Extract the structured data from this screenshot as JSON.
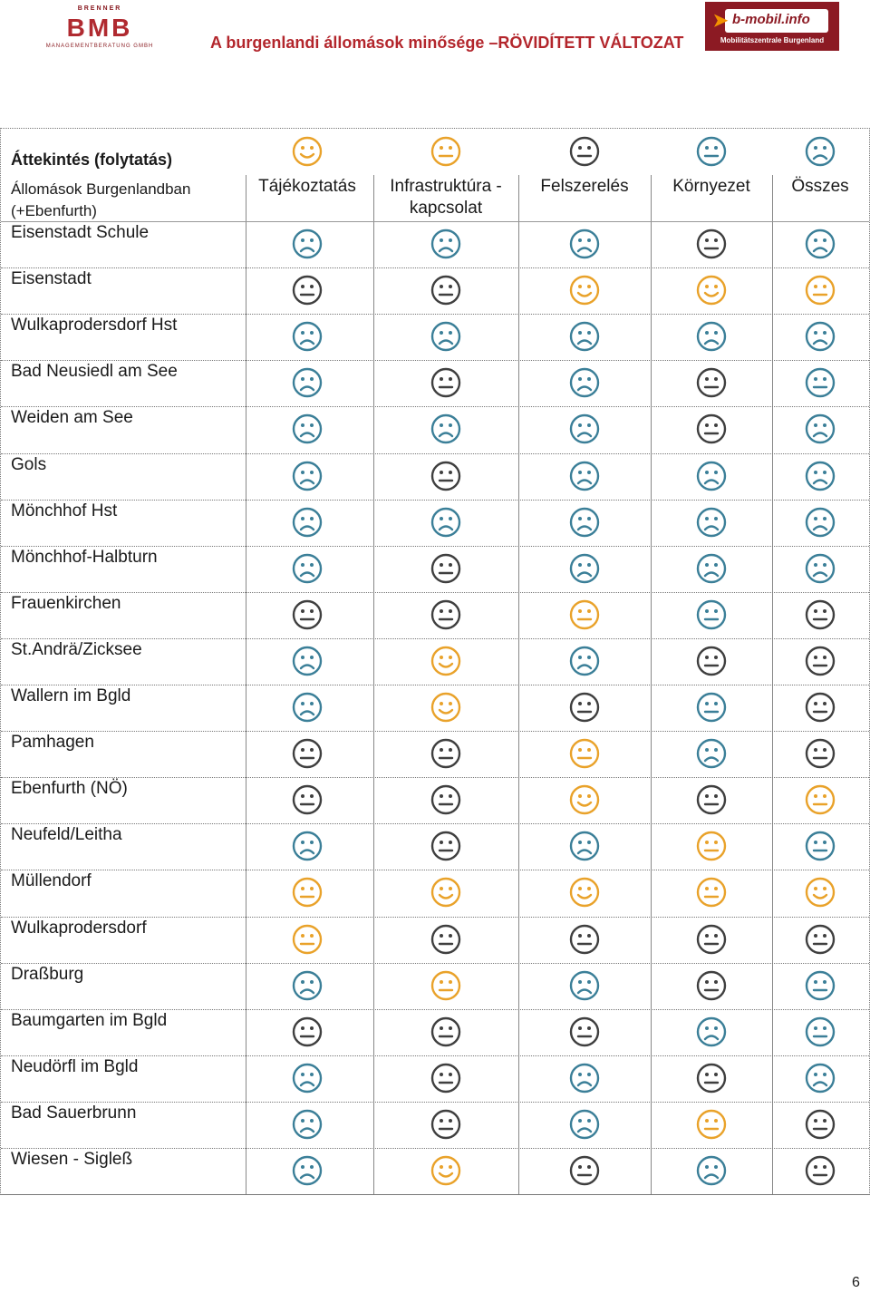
{
  "header": {
    "logo_left_top": "BRENNER",
    "logo_left_mark": "BMB",
    "logo_left_sub": "MANAGEMENTBERATUNG GMBH",
    "title": "A burgenlandi állomások minősége –RÖVIDÍTETT VÁLTOZAT",
    "logo_right_text": "b-mobil.info",
    "logo_right_caption": "Mobilitätszentrale Burgenland"
  },
  "table": {
    "heading": "Áttekintés (folytatás)",
    "stations_header": "Állomások Burgenlandban (+Ebenfurth)",
    "columns": [
      "Tájékoztatás",
      "Infrastruktúra -kapcsolat",
      "Felszerelés",
      "Környezet",
      "Összes"
    ],
    "legend": [
      {
        "mood": "happy",
        "color": "orange"
      },
      {
        "mood": "neutral",
        "color": "orange"
      },
      {
        "mood": "neutral",
        "color": "dark"
      },
      {
        "mood": "neutral",
        "color": "teal"
      },
      {
        "mood": "sad",
        "color": "teal"
      }
    ],
    "rows": [
      {
        "name": "Eisenstadt Schule",
        "ratings": [
          "sad-teal",
          "sad-teal",
          "sad-teal",
          "neutral-dark",
          "sad-teal"
        ]
      },
      {
        "name": "Eisenstadt",
        "ratings": [
          "neutral-dark",
          "neutral-dark",
          "happy-orange",
          "happy-orange",
          "neutral-orange"
        ]
      },
      {
        "name": "Wulkaprodersdorf Hst",
        "ratings": [
          "sad-teal",
          "sad-teal",
          "sad-teal",
          "sad-teal",
          "sad-teal"
        ]
      },
      {
        "name": "Bad Neusiedl am See",
        "ratings": [
          "sad-teal",
          "neutral-dark",
          "sad-teal",
          "neutral-dark",
          "neutral-teal"
        ]
      },
      {
        "name": "Weiden am See",
        "ratings": [
          "sad-teal",
          "sad-teal",
          "sad-teal",
          "neutral-dark",
          "sad-teal"
        ]
      },
      {
        "name": "Gols",
        "ratings": [
          "sad-teal",
          "neutral-dark",
          "sad-teal",
          "sad-teal",
          "sad-teal"
        ]
      },
      {
        "name": "Mönchhof Hst",
        "ratings": [
          "sad-teal",
          "sad-teal",
          "sad-teal",
          "sad-teal",
          "sad-teal"
        ]
      },
      {
        "name": "Mönchhof-Halbturn",
        "ratings": [
          "sad-teal",
          "neutral-dark",
          "sad-teal",
          "sad-teal",
          "sad-teal"
        ]
      },
      {
        "name": "Frauenkirchen",
        "ratings": [
          "neutral-dark",
          "neutral-dark",
          "neutral-orange",
          "neutral-teal",
          "neutral-dark"
        ]
      },
      {
        "name": "St.Andrä/Zicksee",
        "ratings": [
          "sad-teal",
          "happy-orange",
          "sad-teal",
          "neutral-dark",
          "neutral-dark"
        ]
      },
      {
        "name": "Wallern im Bgld",
        "ratings": [
          "sad-teal",
          "happy-orange",
          "neutral-dark",
          "neutral-teal",
          "neutral-dark"
        ]
      },
      {
        "name": "Pamhagen",
        "ratings": [
          "neutral-dark",
          "neutral-dark",
          "neutral-orange",
          "sad-teal",
          "neutral-dark"
        ]
      },
      {
        "name": "Ebenfurth (NÖ)",
        "ratings": [
          "neutral-dark",
          "neutral-dark",
          "happy-orange",
          "neutral-dark",
          "neutral-orange"
        ]
      },
      {
        "name": "Neufeld/Leitha",
        "ratings": [
          "sad-teal",
          "neutral-dark",
          "sad-teal",
          "neutral-orange",
          "neutral-teal"
        ]
      },
      {
        "name": "Müllendorf",
        "ratings": [
          "neutral-orange",
          "happy-orange",
          "happy-orange",
          "neutral-orange",
          "happy-orange"
        ]
      },
      {
        "name": "Wulkaprodersdorf",
        "ratings": [
          "neutral-orange",
          "neutral-dark",
          "neutral-dark",
          "neutral-dark",
          "neutral-dark"
        ]
      },
      {
        "name": "Draßburg",
        "ratings": [
          "sad-teal",
          "neutral-orange",
          "sad-teal",
          "neutral-dark",
          "neutral-teal"
        ]
      },
      {
        "name": "Baumgarten im Bgld",
        "ratings": [
          "neutral-dark",
          "neutral-dark",
          "neutral-dark",
          "sad-teal",
          "neutral-teal"
        ]
      },
      {
        "name": "Neudörfl im Bgld",
        "ratings": [
          "sad-teal",
          "neutral-dark",
          "sad-teal",
          "neutral-dark",
          "sad-teal"
        ]
      },
      {
        "name": "Bad Sauerbrunn",
        "ratings": [
          "sad-teal",
          "neutral-dark",
          "sad-teal",
          "neutral-orange",
          "neutral-dark"
        ]
      },
      {
        "name": "Wiesen - Sigleß",
        "ratings": [
          "sad-teal",
          "happy-orange",
          "neutral-dark",
          "sad-teal",
          "neutral-dark"
        ]
      }
    ]
  },
  "colors": {
    "orange": "#e9a22a",
    "dark": "#3f3f3f",
    "teal": "#3b7f98",
    "brand_red": "#b3262c"
  },
  "page_number": "6"
}
